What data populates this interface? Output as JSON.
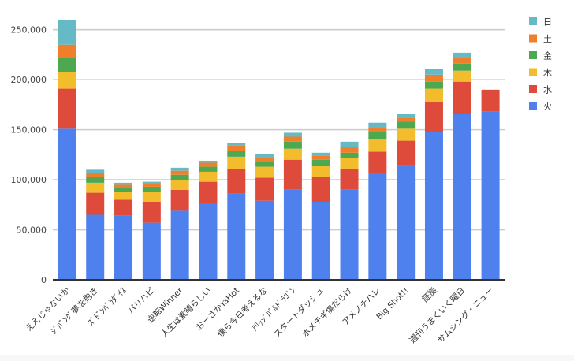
{
  "chart_data": {
    "type": "bar",
    "stacked": true,
    "title": "",
    "xlabel": "",
    "ylabel": "",
    "ylim": [
      0,
      260000
    ],
    "yticks": [
      0,
      50000,
      100000,
      150000,
      200000,
      250000
    ],
    "ytick_labels": [
      "0",
      "50,000",
      "100,000",
      "150,000",
      "200,000",
      "250,000"
    ],
    "grid": true,
    "legend_position": "right",
    "categories": [
      "ええじゃないか",
      "ｼﾞﾊﾞﾝｸﾞ夢を抱き",
      "ｽﾞﾄﾞﾝﾊﾟﾗﾀﾞｲｽ",
      "パリハピ",
      "逆転Winner",
      "人生は素晴らしい",
      "おーさかYaHot",
      "僕ら今日考えるな",
      "ｱﾘｯｼﾞﾊﾞﾙﾄﾞﾗｺﾞﾝ",
      "スタートダッシュ",
      "ホメチギ傷だらけ",
      "アメノチハレ",
      "Big Shot!!",
      "証拠",
      "週刊うまくいく曜日",
      "サムシング・ニュー"
    ],
    "series": [
      {
        "name": "火",
        "color": "#4f81ee",
        "values": [
          151000,
          65000,
          64000,
          57000,
          69000,
          76000,
          86000,
          79000,
          90000,
          78000,
          90000,
          106000,
          115000,
          148000,
          166000,
          168000
        ]
      },
      {
        "name": "水",
        "color": "#de4b3b",
        "values": [
          40000,
          22000,
          16000,
          21000,
          21000,
          22000,
          25000,
          23000,
          30000,
          25000,
          21000,
          22000,
          24000,
          30000,
          32000,
          22000
        ]
      },
      {
        "name": "木",
        "color": "#f2bc2c",
        "values": [
          17000,
          10000,
          8000,
          10000,
          10000,
          10000,
          12000,
          11000,
          11000,
          11000,
          11000,
          13000,
          12000,
          13000,
          11000,
          0
        ]
      },
      {
        "name": "金",
        "color": "#4ea84f",
        "values": [
          14000,
          6000,
          4000,
          5000,
          5000,
          5000,
          6000,
          5000,
          7000,
          6000,
          5000,
          7000,
          7000,
          7000,
          7000,
          0
        ]
      },
      {
        "name": "土",
        "color": "#ef7f2b",
        "values": [
          13000,
          4000,
          3000,
          3000,
          4000,
          4000,
          5000,
          4000,
          5000,
          4000,
          6000,
          4000,
          4000,
          7000,
          6000,
          0
        ]
      },
      {
        "name": "日",
        "color": "#65bac6",
        "values": [
          25000,
          3000,
          2000,
          2000,
          3000,
          2000,
          3000,
          4000,
          4000,
          3000,
          5000,
          5000,
          4000,
          6000,
          5000,
          0
        ]
      }
    ]
  }
}
